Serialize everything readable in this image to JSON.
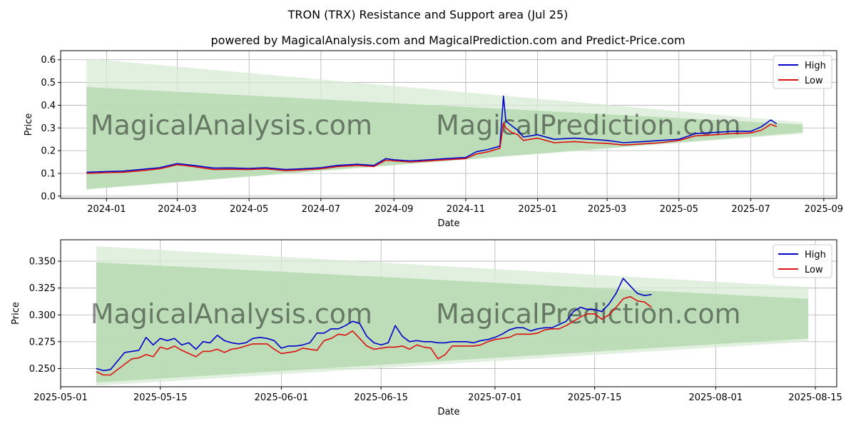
{
  "figure": {
    "title": "TRON (TRX) Resistance and Support area (Jul 25)",
    "subtitle": "powered by MagicalAnalysis.com and MagicalPrediction.com and Predict-Price.com",
    "watermark_left": "MagicalAnalysis.com",
    "watermark_right": "MagicalPrediction.com"
  },
  "colors": {
    "high": "#0000cc",
    "low": "#dd1111",
    "band_outer": "#d8ebd5",
    "band_inner": "#b5d9b0",
    "grid": "#b0b0b0"
  },
  "chart_data": [
    {
      "type": "line",
      "xlabel": "Date",
      "ylabel": "Price",
      "xlim": [
        "2023-11-23",
        "2025-09-12"
      ],
      "ylim": [
        -0.01,
        0.64
      ],
      "x_ticks": [
        "2024-01-01",
        "2024-03-01",
        "2024-05-01",
        "2024-07-01",
        "2024-09-01",
        "2024-11-01",
        "2025-01-01",
        "2025-03-01",
        "2025-05-01",
        "2025-07-01",
        "2025-09-01"
      ],
      "x_tick_labels": [
        "2024-01",
        "2024-03",
        "2024-05",
        "2024-07",
        "2024-09",
        "2024-11",
        "2025-01",
        "2025-03",
        "2025-05",
        "2025-07",
        "2025-09"
      ],
      "y_ticks": [
        0.0,
        0.1,
        0.2,
        0.3,
        0.4,
        0.5,
        0.6
      ],
      "y_tick_labels": [
        "0.0",
        "0.1",
        "0.2",
        "0.3",
        "0.4",
        "0.5",
        "0.6"
      ],
      "grid": true,
      "legend": "top-right",
      "bands": [
        {
          "x": [
            "2023-12-15",
            "2025-08-14"
          ],
          "upper": [
            0.605,
            0.325
          ],
          "lower": [
            0.03,
            0.275
          ]
        },
        {
          "x": [
            "2023-12-15",
            "2025-08-14"
          ],
          "upper": [
            0.48,
            0.315
          ],
          "lower": [
            0.03,
            0.28
          ]
        }
      ],
      "x": [
        "2023-12-15",
        "2024-01-01",
        "2024-01-15",
        "2024-02-01",
        "2024-02-15",
        "2024-03-01",
        "2024-03-15",
        "2024-04-01",
        "2024-04-15",
        "2024-05-01",
        "2024-05-15",
        "2024-06-01",
        "2024-06-15",
        "2024-07-01",
        "2024-07-15",
        "2024-08-01",
        "2024-08-15",
        "2024-08-25",
        "2024-09-01",
        "2024-09-15",
        "2024-10-01",
        "2024-10-15",
        "2024-11-01",
        "2024-11-10",
        "2024-11-20",
        "2024-11-30",
        "2024-12-03",
        "2024-12-05",
        "2024-12-10",
        "2024-12-15",
        "2024-12-20",
        "2025-01-01",
        "2025-01-15",
        "2025-02-01",
        "2025-02-15",
        "2025-03-01",
        "2025-03-15",
        "2025-04-01",
        "2025-04-15",
        "2025-05-01",
        "2025-05-15",
        "2025-06-01",
        "2025-06-15",
        "2025-07-01",
        "2025-07-10",
        "2025-07-18",
        "2025-07-23"
      ],
      "series": [
        {
          "name": "High",
          "values": [
            0.105,
            0.108,
            0.11,
            0.118,
            0.125,
            0.143,
            0.135,
            0.123,
            0.124,
            0.122,
            0.125,
            0.117,
            0.12,
            0.125,
            0.135,
            0.14,
            0.135,
            0.165,
            0.16,
            0.155,
            0.16,
            0.165,
            0.17,
            0.195,
            0.205,
            0.22,
            0.44,
            0.33,
            0.31,
            0.29,
            0.26,
            0.27,
            0.25,
            0.255,
            0.25,
            0.245,
            0.235,
            0.24,
            0.245,
            0.25,
            0.275,
            0.28,
            0.285,
            0.285,
            0.305,
            0.335,
            0.318
          ]
        },
        {
          "name": "Low",
          "values": [
            0.1,
            0.103,
            0.105,
            0.112,
            0.12,
            0.138,
            0.13,
            0.117,
            0.118,
            0.117,
            0.12,
            0.112,
            0.115,
            0.12,
            0.13,
            0.135,
            0.13,
            0.158,
            0.155,
            0.15,
            0.155,
            0.16,
            0.165,
            0.185,
            0.195,
            0.21,
            0.32,
            0.3,
            0.28,
            0.27,
            0.245,
            0.255,
            0.235,
            0.24,
            0.235,
            0.232,
            0.225,
            0.23,
            0.235,
            0.245,
            0.265,
            0.27,
            0.275,
            0.278,
            0.29,
            0.316,
            0.306
          ]
        }
      ]
    },
    {
      "type": "line",
      "xlabel": "Date",
      "ylabel": "Price",
      "xlim": [
        "2025-05-01",
        "2025-08-18"
      ],
      "ylim": [
        0.233,
        0.37
      ],
      "x_ticks": [
        "2025-05-01",
        "2025-05-15",
        "2025-06-01",
        "2025-06-15",
        "2025-07-01",
        "2025-07-15",
        "2025-08-01",
        "2025-08-15"
      ],
      "x_tick_labels": [
        "2025-05-01",
        "2025-05-15",
        "2025-06-01",
        "2025-06-15",
        "2025-07-01",
        "2025-07-15",
        "2025-08-01",
        "2025-08-15"
      ],
      "y_ticks": [
        0.25,
        0.275,
        0.3,
        0.325,
        0.35
      ],
      "y_tick_labels": [
        "0.250",
        "0.275",
        "0.300",
        "0.325",
        "0.350"
      ],
      "grid": true,
      "legend": "top-right",
      "bands": [
        {
          "x": [
            "2025-05-06",
            "2025-08-14"
          ],
          "upper": [
            0.364,
            0.326
          ],
          "lower": [
            0.234,
            0.275
          ]
        },
        {
          "x": [
            "2025-05-06",
            "2025-08-14"
          ],
          "upper": [
            0.349,
            0.315
          ],
          "lower": [
            0.237,
            0.278
          ]
        }
      ],
      "x": [
        "2025-05-06",
        "2025-05-07",
        "2025-05-08",
        "2025-05-09",
        "2025-05-10",
        "2025-05-11",
        "2025-05-12",
        "2025-05-13",
        "2025-05-14",
        "2025-05-15",
        "2025-05-16",
        "2025-05-17",
        "2025-05-18",
        "2025-05-19",
        "2025-05-20",
        "2025-05-21",
        "2025-05-22",
        "2025-05-23",
        "2025-05-24",
        "2025-05-25",
        "2025-05-26",
        "2025-05-27",
        "2025-05-28",
        "2025-05-29",
        "2025-05-30",
        "2025-05-31",
        "2025-06-01",
        "2025-06-02",
        "2025-06-03",
        "2025-06-04",
        "2025-06-05",
        "2025-06-06",
        "2025-06-07",
        "2025-06-08",
        "2025-06-09",
        "2025-06-10",
        "2025-06-11",
        "2025-06-12",
        "2025-06-13",
        "2025-06-14",
        "2025-06-15",
        "2025-06-16",
        "2025-06-17",
        "2025-06-18",
        "2025-06-19",
        "2025-06-20",
        "2025-06-21",
        "2025-06-22",
        "2025-06-23",
        "2025-06-24",
        "2025-06-25",
        "2025-06-26",
        "2025-06-27",
        "2025-06-28",
        "2025-06-29",
        "2025-06-30",
        "2025-07-01",
        "2025-07-02",
        "2025-07-03",
        "2025-07-04",
        "2025-07-05",
        "2025-07-06",
        "2025-07-07",
        "2025-07-08",
        "2025-07-09",
        "2025-07-10",
        "2025-07-11",
        "2025-07-12",
        "2025-07-13",
        "2025-07-14",
        "2025-07-15",
        "2025-07-16",
        "2025-07-17",
        "2025-07-18",
        "2025-07-19",
        "2025-07-20",
        "2025-07-21",
        "2025-07-22",
        "2025-07-23"
      ],
      "series": [
        {
          "name": "High",
          "values": [
            0.25,
            0.248,
            0.249,
            0.257,
            0.265,
            0.266,
            0.267,
            0.279,
            0.272,
            0.278,
            0.276,
            0.278,
            0.272,
            0.274,
            0.268,
            0.275,
            0.274,
            0.281,
            0.276,
            0.274,
            0.273,
            0.274,
            0.278,
            0.279,
            0.278,
            0.276,
            0.269,
            0.271,
            0.271,
            0.272,
            0.274,
            0.283,
            0.283,
            0.287,
            0.287,
            0.29,
            0.294,
            0.292,
            0.28,
            0.274,
            0.272,
            0.274,
            0.29,
            0.28,
            0.275,
            0.276,
            0.275,
            0.275,
            0.274,
            0.274,
            0.275,
            0.275,
            0.275,
            0.274,
            0.276,
            0.277,
            0.279,
            0.282,
            0.286,
            0.288,
            0.288,
            0.285,
            0.287,
            0.288,
            0.288,
            0.291,
            0.294,
            0.303,
            0.307,
            0.305,
            0.305,
            0.303,
            0.31,
            0.32,
            0.334,
            0.327,
            0.32,
            0.318,
            0.319
          ]
        },
        {
          "name": "Low",
          "values": [
            0.247,
            0.244,
            0.244,
            0.249,
            0.254,
            0.259,
            0.26,
            0.263,
            0.261,
            0.27,
            0.268,
            0.271,
            0.267,
            0.264,
            0.261,
            0.266,
            0.266,
            0.268,
            0.265,
            0.268,
            0.269,
            0.271,
            0.273,
            0.273,
            0.273,
            0.268,
            0.264,
            0.265,
            0.266,
            0.269,
            0.268,
            0.267,
            0.276,
            0.278,
            0.282,
            0.281,
            0.285,
            0.278,
            0.271,
            0.268,
            0.269,
            0.27,
            0.27,
            0.271,
            0.268,
            0.272,
            0.27,
            0.269,
            0.259,
            0.263,
            0.271,
            0.271,
            0.271,
            0.271,
            0.272,
            0.275,
            0.277,
            0.278,
            0.279,
            0.282,
            0.282,
            0.282,
            0.283,
            0.286,
            0.287,
            0.287,
            0.29,
            0.294,
            0.298,
            0.301,
            0.301,
            0.296,
            0.3,
            0.307,
            0.315,
            0.317,
            0.313,
            0.312,
            0.307
          ]
        }
      ]
    }
  ]
}
